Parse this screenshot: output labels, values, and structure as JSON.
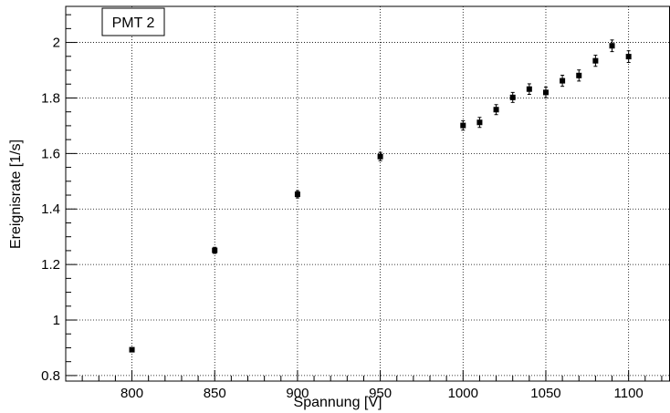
{
  "chart_data": {
    "type": "scatter",
    "title": "",
    "legend": {
      "label": "PMT 2",
      "placement": "top-left"
    },
    "xlabel": "Spannung [V]",
    "ylabel": "Ereignisrate [1/s]",
    "xlim": [
      760,
      1125
    ],
    "ylim": [
      0.78,
      2.13
    ],
    "xticks": [
      800,
      850,
      900,
      950,
      1000,
      1050,
      1100
    ],
    "xtick_labels": [
      "800",
      "850",
      "900",
      "950",
      "1000",
      "1050",
      "1100"
    ],
    "yticks": [
      0.8,
      1.0,
      1.2,
      1.4,
      1.6,
      1.8,
      2.0
    ],
    "ytick_labels": [
      "0.8",
      "1",
      "1.2",
      "1.4",
      "1.6",
      "1.8",
      "2"
    ],
    "grid": true,
    "marker_color": "#000000",
    "series": [
      {
        "x": [
          800,
          850,
          900,
          950,
          1000,
          1010,
          1020,
          1030,
          1040,
          1050,
          1060,
          1070,
          1080,
          1090,
          1100
        ],
        "y": [
          0.893,
          1.251,
          1.453,
          1.589,
          1.701,
          1.712,
          1.758,
          1.802,
          1.832,
          1.82,
          1.862,
          1.881,
          1.934,
          1.988,
          1.949
        ],
        "yerr": [
          0.006,
          0.011,
          0.013,
          0.015,
          0.017,
          0.018,
          0.018,
          0.018,
          0.019,
          0.019,
          0.02,
          0.02,
          0.02,
          0.021,
          0.021
        ]
      }
    ]
  }
}
